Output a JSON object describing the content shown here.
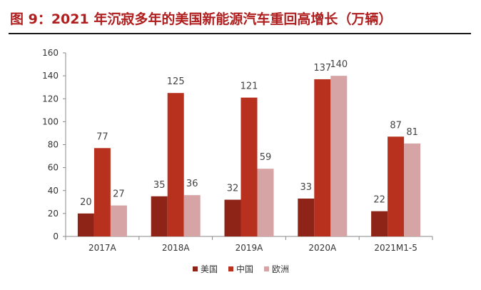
{
  "title": "图 9：2021 年沉寂多年的美国新能源汽车重回高增长（万辆）",
  "chart_data": {
    "type": "bar",
    "title": "图 9：2021 年沉寂多年的美国新能源汽车重回高增长（万辆）",
    "categories": [
      "2017A",
      "2018A",
      "2019A",
      "2020A",
      "2021M1-5"
    ],
    "series": [
      {
        "name": "美国",
        "values": [
          20,
          35,
          32,
          33,
          22
        ],
        "color": "#8e2418"
      },
      {
        "name": "中国",
        "values": [
          77,
          125,
          121,
          137,
          87
        ],
        "color": "#b8311f"
      },
      {
        "name": "欧洲",
        "values": [
          27,
          36,
          59,
          140,
          81
        ],
        "color": "#d6a4a4"
      }
    ],
    "ylim": [
      0,
      160
    ],
    "yticks": [
      0,
      20,
      40,
      60,
      80,
      100,
      120,
      140,
      160
    ],
    "grid": false,
    "legend": "bottom-center"
  }
}
